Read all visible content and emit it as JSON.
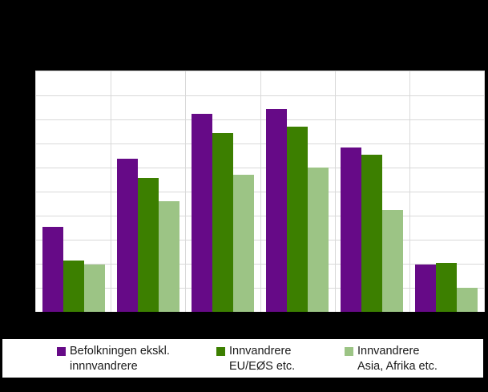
{
  "window": {
    "background_color": "#000000"
  },
  "chart_data": {
    "type": "bar",
    "title": "",
    "categories": [
      "",
      "",
      "",
      "",
      "",
      ""
    ],
    "series": [
      {
        "name": "Befolkningen ekskl. innnvandrere",
        "color": "#660a87",
        "values": [
          35.3,
          63.6,
          82.3,
          84.5,
          68.2,
          19.6
        ]
      },
      {
        "name": "Innvandrere EU/EØS etc.",
        "color": "#3c7f00",
        "values": [
          21.2,
          55.8,
          74.3,
          77.0,
          65.5,
          20.2
        ]
      },
      {
        "name": "Innvandrere Asia, Afrika etc.",
        "color": "#9cc485",
        "values": [
          19.7,
          46.0,
          57.0,
          60.0,
          42.3,
          10.0
        ]
      }
    ],
    "ylim": [
      0,
      100
    ],
    "gridline_step": 10,
    "grid": true,
    "gridline_color": "#d9d9d9",
    "plot_background": "#ffffff",
    "legend_position": "bottom",
    "axis_tick_labels_visible": false
  },
  "legend": {
    "items": [
      {
        "line1": "Befolkningen ekskl.",
        "line2": "innnvandrere",
        "color": "#660a87"
      },
      {
        "line1": "Innvandrere",
        "line2": "EU/EØS etc.",
        "color": "#3c7f00"
      },
      {
        "line1": "Innvandrere",
        "line2": "Asia, Afrika etc.",
        "color": "#9cc485"
      }
    ]
  }
}
